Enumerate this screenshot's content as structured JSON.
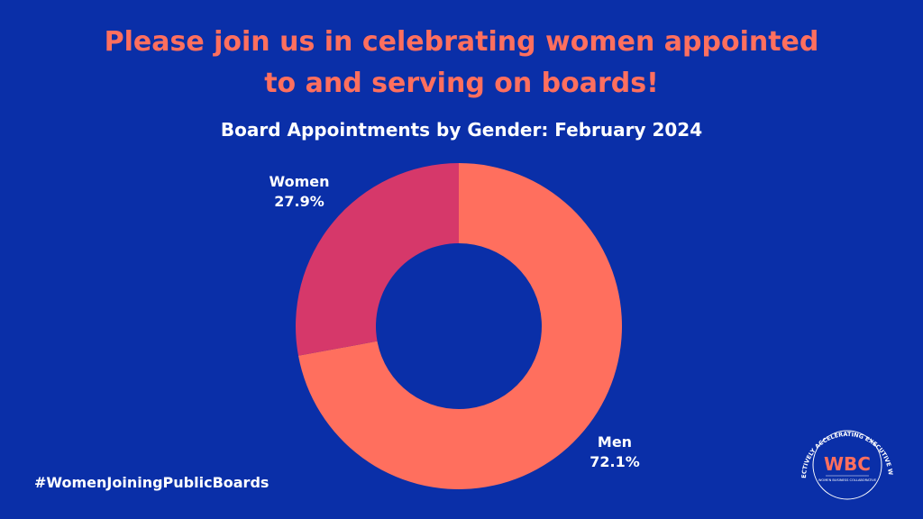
{
  "headline": {
    "line1": "Please join us in celebrating women appointed",
    "line2": "to and serving on boards!"
  },
  "chart_data": {
    "type": "pie",
    "donut": true,
    "title": "Board Appointments by Gender: February 2024",
    "slices": [
      {
        "label": "Men",
        "value": 72.1,
        "value_label": "72.1%",
        "color": "#ff6f5e"
      },
      {
        "label": "Women",
        "value": 27.9,
        "value_label": "27.9%",
        "color": "#d6386a"
      }
    ]
  },
  "hashtag": "#WomenJoiningPublicBoards",
  "logo": {
    "mark": "WBC",
    "ring_text": "COLLECTIVELY ACCELERATING EXECUTIVE WOMEN",
    "subtitle": "WOMEN BUSINESS COLLABORATIVE"
  },
  "colors": {
    "background": "#0a2fa8",
    "headline": "#ff6f5e",
    "men": "#ff6f5e",
    "women": "#d6386a"
  }
}
